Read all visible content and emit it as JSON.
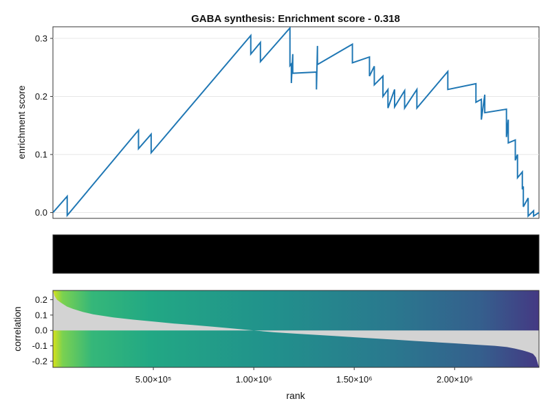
{
  "chart_data": [
    {
      "type": "line",
      "title": "GABA synthesis: Enrichment score - 0.318",
      "ylabel": "enrichment score",
      "xlim": [
        0,
        2420000
      ],
      "ylim": [
        -0.01,
        0.32
      ],
      "y_ticks": [
        0.0,
        0.1,
        0.2,
        0.3
      ],
      "y_tick_labels": [
        "0.0",
        "0.1",
        "0.2",
        "0.3"
      ],
      "grid": true,
      "line_color": "#1f77b4",
      "series": [
        {
          "x": [
            0,
            71000,
            71000,
            426000,
            426000,
            489000,
            489000,
            985000,
            985000,
            1033000,
            1033000,
            1180000,
            1180000,
            1187000,
            1187000,
            1194000,
            1194000,
            1312000,
            1312000,
            1317000,
            1317000,
            1491000,
            1491000,
            1576000,
            1576000,
            1600000,
            1600000,
            1643000,
            1643000,
            1668000,
            1668000,
            1701000,
            1701000,
            1751000,
            1751000,
            1812000,
            1812000,
            1966000,
            1966000,
            2106000,
            2106000,
            2133000,
            2133000,
            2150000,
            2150000,
            2258000,
            2258000,
            2267000,
            2267000,
            2302000,
            2302000,
            2313000,
            2313000,
            2337000,
            2337000,
            2342000,
            2342000,
            2366000,
            2366000,
            2393000,
            2393000,
            2420000
          ],
          "y": [
            0.0,
            0.028,
            -0.005,
            0.142,
            0.11,
            0.135,
            0.103,
            0.305,
            0.273,
            0.293,
            0.26,
            0.318,
            0.253,
            0.256,
            0.223,
            0.273,
            0.24,
            0.242,
            0.212,
            0.287,
            0.255,
            0.29,
            0.258,
            0.268,
            0.235,
            0.252,
            0.22,
            0.235,
            0.2,
            0.212,
            0.18,
            0.212,
            0.182,
            0.21,
            0.18,
            0.212,
            0.18,
            0.243,
            0.212,
            0.222,
            0.19,
            0.195,
            0.16,
            0.203,
            0.172,
            0.178,
            0.13,
            0.16,
            0.12,
            0.125,
            0.09,
            0.1,
            0.06,
            0.07,
            0.04,
            0.045,
            0.01,
            0.025,
            -0.006,
            0.003,
            -0.006,
            0.0
          ]
        }
      ]
    },
    {
      "type": "heatmap",
      "description_color": "#000000"
    },
    {
      "type": "area",
      "ylabel": "correlation",
      "xlabel": "rank",
      "xlim": [
        0,
        2420000
      ],
      "ylim": [
        -0.24,
        0.26
      ],
      "x_ticks": [
        500000,
        1000000,
        1500000,
        2000000
      ],
      "x_tick_labels": [
        "5.00×10⁵",
        "1.00×10⁶",
        "1.50×10⁶",
        "2.00×10⁶"
      ],
      "y_ticks": [
        0.2,
        0.1,
        0.0,
        -0.1,
        -0.2
      ],
      "y_tick_labels": [
        "0.2",
        "0.1",
        "0.0",
        "-0.1",
        "-0.2"
      ],
      "area_color": "#d3d3d3",
      "series": [
        {
          "x": [
            0,
            8000,
            20000,
            40000,
            70000,
            100000,
            150000,
            200000,
            300000,
            400000,
            500000,
            600000,
            700000,
            800000,
            900000,
            1000000,
            1100000,
            1200000,
            1300000,
            1400000,
            1500000,
            1600000,
            1700000,
            1800000,
            1900000,
            2000000,
            2100000,
            2200000,
            2260000,
            2300000,
            2340000,
            2370000,
            2390000,
            2405000,
            2420000
          ],
          "values": [
            0.26,
            0.225,
            0.2,
            0.18,
            0.155,
            0.14,
            0.12,
            0.105,
            0.085,
            0.07,
            0.058,
            0.045,
            0.035,
            0.024,
            0.012,
            0.0,
            -0.012,
            -0.02,
            -0.028,
            -0.036,
            -0.044,
            -0.052,
            -0.06,
            -0.068,
            -0.076,
            -0.084,
            -0.092,
            -0.1,
            -0.108,
            -0.118,
            -0.13,
            -0.142,
            -0.152,
            -0.175,
            -0.24
          ]
        }
      ]
    }
  ]
}
